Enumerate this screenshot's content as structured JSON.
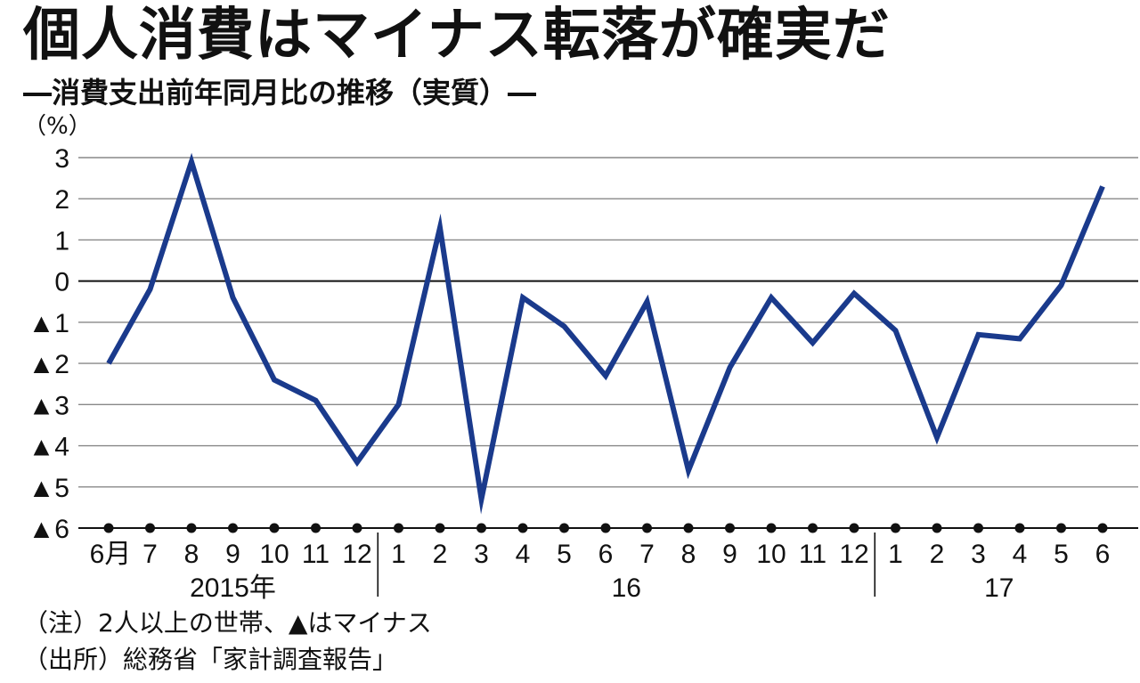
{
  "title": "個人消費はマイナス転落が確実だ",
  "subtitle": "―消費支出前年同月比の推移（実質）―",
  "notes": {
    "note1": "（注）2人以上の世帯、▲はマイナス",
    "note2": "（出所）総務省「家計調査報告」"
  },
  "colors": {
    "line": "#1a3a8c",
    "grid": "#888888",
    "text": "#111111"
  },
  "chart_data": {
    "type": "line",
    "unit_label": "（%）",
    "ylim": [
      -6,
      3
    ],
    "y_ticks": [
      3,
      2,
      1,
      0,
      -1,
      -2,
      -3,
      -4,
      -5,
      -6
    ],
    "y_tick_labels": [
      "3",
      "2",
      "1",
      "0",
      "▲1",
      "▲2",
      "▲3",
      "▲4",
      "▲5",
      "▲6"
    ],
    "x_tick_labels": [
      "6月",
      "7",
      "8",
      "9",
      "10",
      "11",
      "12",
      "1",
      "2",
      "3",
      "4",
      "5",
      "6",
      "7",
      "8",
      "9",
      "10",
      "11",
      "12",
      "1",
      "2",
      "3",
      "4",
      "5",
      "6"
    ],
    "year_labels": [
      {
        "label": "2015年",
        "start": 0,
        "end": 6
      },
      {
        "label": "16",
        "start": 7,
        "end": 18
      },
      {
        "label": "17",
        "start": 19,
        "end": 24
      }
    ],
    "series": [
      {
        "values": [
          -2.0,
          -0.2,
          2.9,
          -0.4,
          -2.4,
          -2.9,
          -4.4,
          -3.0,
          1.3,
          -5.3,
          -0.4,
          -1.1,
          -2.3,
          -0.5,
          -4.6,
          -2.1,
          -0.4,
          -1.5,
          -0.3,
          -1.2,
          -3.8,
          -1.3,
          -1.4,
          -0.1,
          2.3
        ]
      }
    ],
    "grid": true,
    "markers_on_axis": true
  }
}
